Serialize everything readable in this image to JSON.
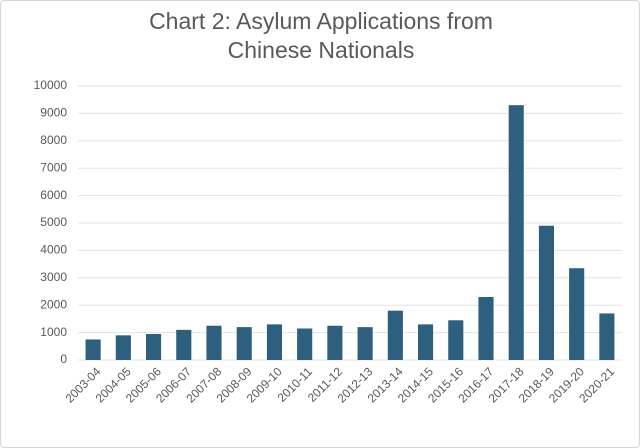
{
  "chart_data": {
    "type": "bar",
    "title": "Chart 2: Asylum Applications from Chinese Nationals",
    "categories": [
      "2003-04",
      "2004-05",
      "2005-06",
      "2006-07",
      "2007-08",
      "2008-09",
      "2009-10",
      "2010-11",
      "2011-12",
      "2012-13",
      "2013-14",
      "2014-15",
      "2015-16",
      "2016-17",
      "2017-18",
      "2018-19",
      "2019-20",
      "2020-21"
    ],
    "values": [
      750,
      900,
      950,
      1100,
      1250,
      1200,
      1300,
      1150,
      1250,
      1200,
      1800,
      1300,
      1450,
      2300,
      9300,
      4900,
      3350,
      1700
    ],
    "color": "#2e5f7f",
    "ylim": [
      0,
      10000
    ],
    "yticks": [
      0,
      1000,
      2000,
      3000,
      4000,
      5000,
      6000,
      7000,
      8000,
      9000,
      10000
    ],
    "grid": true
  }
}
